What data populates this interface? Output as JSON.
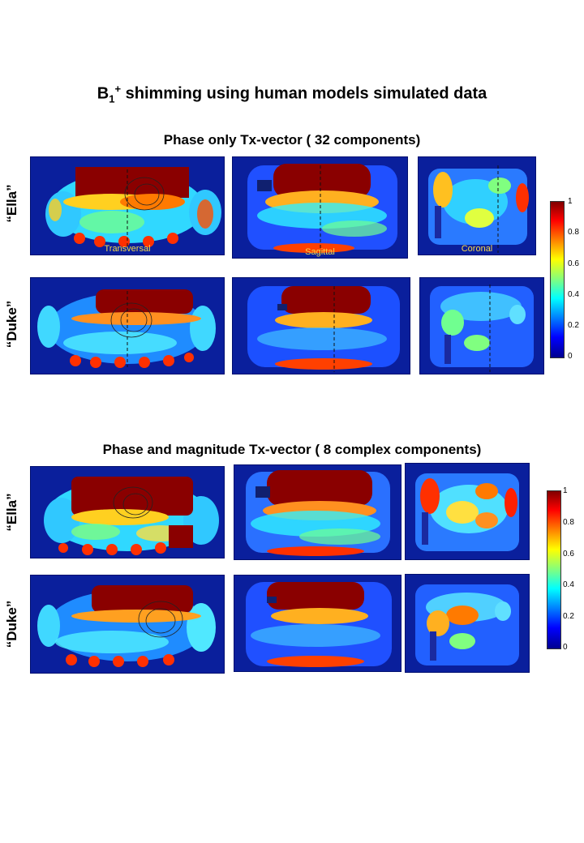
{
  "title": {
    "main_pre": "B",
    "main_sub": "1",
    "main_sup": "+",
    "main_post": " shimming using human models simulated data"
  },
  "sections": [
    {
      "heading": "Phase only  Tx-vector ( 32 components)",
      "rows": [
        "“Ella”",
        "“Duke”"
      ]
    },
    {
      "heading": "Phase and magnitude  Tx-vector ( 8 complex components)",
      "rows": [
        "“Ella”",
        "“Duke”"
      ]
    }
  ],
  "view_labels": {
    "transversal": "Transversal",
    "sagittal": "Sagittal",
    "coronal": "Coronal"
  },
  "colorbar": {
    "ticks": [
      "1",
      "0.8",
      "0.6",
      "0.4",
      "0.2",
      "0"
    ],
    "colormap": "jet",
    "colors": [
      "#800000",
      "#ff0000",
      "#ff8000",
      "#ffff00",
      "#80ff80",
      "#00ffff",
      "#0080ff",
      "#0000ff",
      "#00008f"
    ]
  }
}
